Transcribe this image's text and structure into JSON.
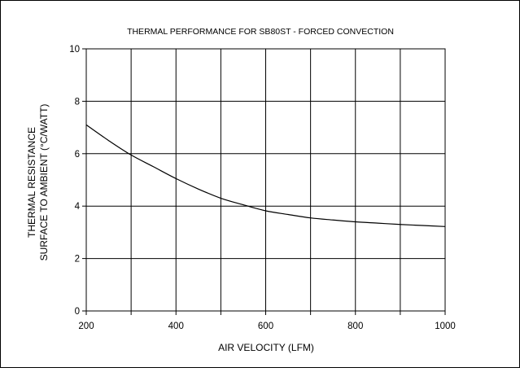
{
  "chart_data": {
    "type": "line",
    "title": "THERMAL PERFORMANCE FOR SB80ST - FORCED CONVECTION",
    "xlabel": "AIR VELOCITY (LFM)",
    "ylabel_lines": [
      "THERMAL RESISTANCE",
      "SURFACE TO AMBIENT (°C/WATT)"
    ],
    "xlim": [
      200,
      1000
    ],
    "ylim": [
      0,
      10
    ],
    "x_ticks": [
      200,
      400,
      600,
      800,
      1000
    ],
    "y_ticks": [
      0,
      2,
      4,
      6,
      8,
      10
    ],
    "x_grid": [
      200,
      300,
      400,
      500,
      600,
      700,
      800,
      900,
      1000
    ],
    "y_grid": [
      0,
      2,
      4,
      6,
      8,
      10
    ],
    "grid": true,
    "series": [
      {
        "x": [
          200,
          250,
          300,
          350,
          400,
          450,
          500,
          550,
          600,
          650,
          700,
          750,
          800,
          850,
          900,
          950,
          1000
        ],
        "y": [
          7.1,
          6.5,
          5.95,
          5.5,
          5.05,
          4.65,
          4.3,
          4.05,
          3.82,
          3.68,
          3.55,
          3.47,
          3.4,
          3.35,
          3.3,
          3.26,
          3.22
        ],
        "color": "#000000"
      }
    ]
  }
}
